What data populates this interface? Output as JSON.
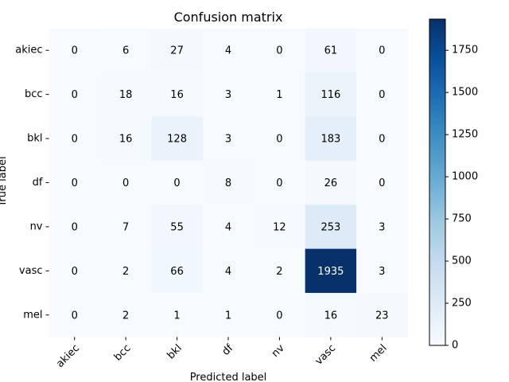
{
  "chart_data": {
    "type": "heatmap",
    "title": "Confusion matrix",
    "xlabel": "Predicted label",
    "ylabel": "True label",
    "row_labels": [
      "akiec",
      "bcc",
      "bkl",
      "df",
      "nv",
      "vasc",
      "mel"
    ],
    "col_labels": [
      "akiec",
      "bcc",
      "bkl",
      "df",
      "nv",
      "vasc",
      "mel"
    ],
    "values": [
      [
        0,
        6,
        27,
        4,
        0,
        61,
        0
      ],
      [
        0,
        18,
        16,
        3,
        1,
        116,
        0
      ],
      [
        0,
        16,
        128,
        3,
        0,
        183,
        0
      ],
      [
        0,
        0,
        0,
        8,
        0,
        26,
        0
      ],
      [
        0,
        7,
        55,
        4,
        12,
        253,
        3
      ],
      [
        0,
        2,
        66,
        4,
        2,
        1935,
        3
      ],
      [
        0,
        2,
        1,
        1,
        0,
        16,
        23
      ]
    ],
    "colormap": "Blues",
    "colorbar_ticks": [
      0,
      250,
      500,
      750,
      1000,
      1250,
      1500,
      1750
    ],
    "colorbar_range": [
      0,
      1935
    ],
    "colors": {
      "low": "#f7fbff",
      "high": "#08306b"
    }
  }
}
